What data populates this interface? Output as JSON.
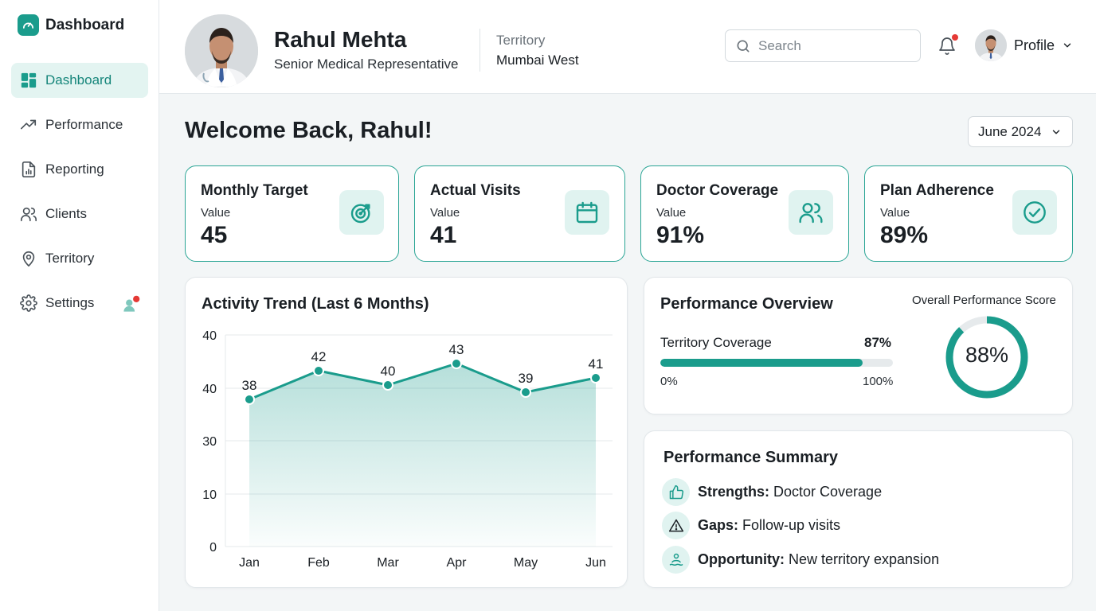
{
  "brand": {
    "title": "Dashboard",
    "icon": "gauge-icon"
  },
  "sidebar": {
    "items": [
      {
        "label": "Dashboard",
        "icon": "grid-icon",
        "active": true
      },
      {
        "label": "Performance",
        "icon": "trend-icon"
      },
      {
        "label": "Reporting",
        "icon": "report-icon"
      },
      {
        "label": "Clients",
        "icon": "users-icon"
      },
      {
        "label": "Territory",
        "icon": "pin-icon"
      },
      {
        "label": "Settings",
        "icon": "gear-icon",
        "badge": true
      }
    ]
  },
  "header": {
    "user_name": "Rahul Mehta",
    "user_role": "Senior Medical Representative",
    "territory_label": "Territory",
    "territory_value": "Mumbai West",
    "search_placeholder": "Search",
    "profile_label": "Profile"
  },
  "main": {
    "welcome": "Welcome Back, Rahul!",
    "period": "June 2024"
  },
  "kpis": [
    {
      "title": "Monthly Target",
      "sub": "Value",
      "value": "45",
      "icon": "target-icon"
    },
    {
      "title": "Actual Visits",
      "sub": "Value",
      "value": "41",
      "icon": "calendar-icon"
    },
    {
      "title": "Doctor Coverage",
      "sub": "Value",
      "value": "91%",
      "icon": "users-icon"
    },
    {
      "title": "Plan Adherence",
      "sub": "Value",
      "value": "89%",
      "icon": "check-circle-icon"
    }
  ],
  "activity": {
    "title": "Activity Trend (Last 6 Months)"
  },
  "chart_data": {
    "type": "area",
    "title": "Activity Trend (Last 6 Months)",
    "categories": [
      "Jan",
      "Feb",
      "Mar",
      "Apr",
      "May",
      "Jun"
    ],
    "values": [
      38,
      42,
      40,
      43,
      39,
      41
    ],
    "y_ticks": [
      "40",
      "40",
      "30",
      "10",
      "0"
    ],
    "grid": true,
    "color": "#1a9c8c"
  },
  "performance": {
    "title": "Performance Overview",
    "coverage_label": "Territory Coverage",
    "coverage_value": "87%",
    "coverage_fraction": 0.87,
    "bar_min": "0%",
    "bar_max": "100%",
    "score_label": "Overall Performance Score",
    "score_value": "88%",
    "score_fraction": 0.88
  },
  "summary": {
    "title": "Performance Summary",
    "items": [
      {
        "label": "Strengths:",
        "text": "Doctor Coverage",
        "icon": "thumbs-up-icon"
      },
      {
        "label": "Gaps:",
        "text": "Follow-up visits",
        "icon": "warning-icon"
      },
      {
        "label": "Opportunity:",
        "text": "New territory expansion",
        "icon": "person-wave-icon"
      }
    ]
  },
  "colors": {
    "accent": "#1a9c8c",
    "accent_light": "#e0f3f0",
    "alert": "#e53935"
  }
}
